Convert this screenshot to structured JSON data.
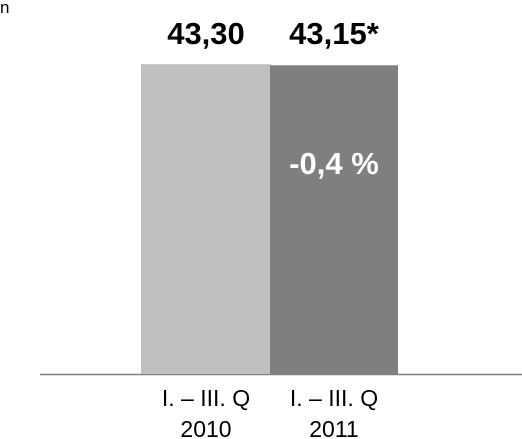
{
  "corner_fragment": "n",
  "chart_data": {
    "type": "bar",
    "categories": [
      "I. – III. Q 2010",
      "I. – III. Q 2011"
    ],
    "category_lines": [
      [
        "I. – III. Q",
        "2010"
      ],
      [
        "I. – III. Q",
        "2011"
      ]
    ],
    "values": [
      43.3,
      43.15
    ],
    "value_labels": [
      "43,30",
      "43,15*"
    ],
    "annotation": "-0,4 %",
    "ylim": [
      0,
      46.4
    ],
    "grid": false,
    "legend": "none",
    "colors": {
      "bar_2010": "#c0c0c0",
      "bar_2011": "#7f7f7f",
      "annotation_text": "#ffffff",
      "axis_line": "#808080"
    }
  }
}
